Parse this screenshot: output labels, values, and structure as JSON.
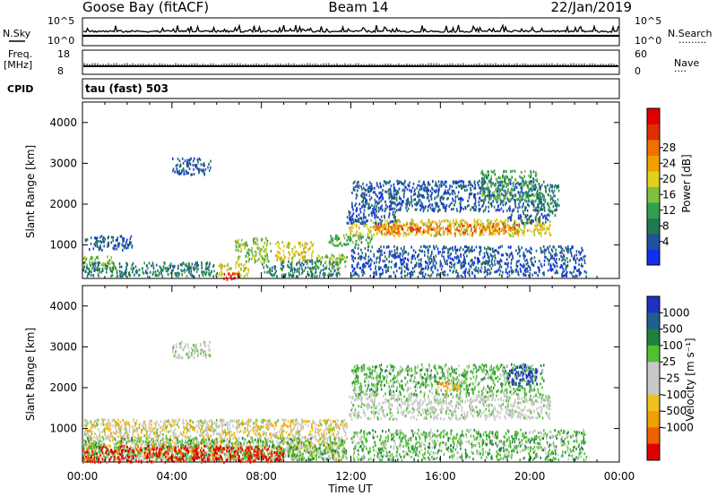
{
  "header": {
    "station": "Goose Bay (fitACF)",
    "beam": "Beam 14",
    "date": "22/Jan/2019"
  },
  "panels": {
    "nsky_label": "N.Sky",
    "nsearch_label": "N.Search",
    "nsearch_dots": "·········",
    "freq_label_line1": "Freq.",
    "freq_label_line2": "[MHz]",
    "nave_label": "Nave",
    "nave_dots": "····",
    "cpid_label": "CPID",
    "cpid_value": "tau (fast) 503",
    "noise_ticks_left": [
      "10^5",
      "10^0"
    ],
    "noise_ticks_right": [
      "10^5",
      "10^0"
    ],
    "freq_ticks_left": [
      "18",
      "8"
    ],
    "nave_ticks_right": [
      "60",
      "0"
    ]
  },
  "chart_data": [
    {
      "type": "heatmap",
      "name": "power",
      "ylabel": "Slant Range [km]",
      "y_ticks": [
        1000,
        2000,
        3000,
        4000
      ],
      "ylim": [
        180,
        4500
      ],
      "xlim": [
        0,
        24
      ],
      "colorbar": {
        "label": "Power [dB]",
        "ticks": [
          "4",
          "8",
          "12",
          "16",
          "20",
          "24",
          "28"
        ],
        "colors": [
          "#1030f0",
          "#2050a0",
          "#207850",
          "#30a050",
          "#80c040",
          "#e0d020",
          "#f0a000",
          "#f07000",
          "#e03000",
          "#e00000"
        ]
      },
      "regions": [
        {
          "t0": 0.1,
          "t1": 2.2,
          "r0": 900,
          "r1": 1250,
          "level": 1
        },
        {
          "t0": 0.0,
          "t1": 1.4,
          "r0": 400,
          "r1": 750,
          "level": 4
        },
        {
          "t0": 0.0,
          "t1": 6.0,
          "r0": 250,
          "r1": 600,
          "level": 2
        },
        {
          "t0": 4.0,
          "t1": 5.7,
          "r0": 2750,
          "r1": 3150,
          "level": 1
        },
        {
          "t0": 6.0,
          "t1": 7.4,
          "r0": 250,
          "r1": 560,
          "level": 5
        },
        {
          "t0": 6.2,
          "t1": 7.0,
          "r0": 180,
          "r1": 330,
          "level": 9
        },
        {
          "t0": 6.8,
          "t1": 8.4,
          "r0": 600,
          "r1": 1200,
          "level": 4
        },
        {
          "t0": 8.6,
          "t1": 10.3,
          "r0": 650,
          "r1": 1100,
          "level": 5
        },
        {
          "t0": 8.0,
          "t1": 11.5,
          "r0": 250,
          "r1": 650,
          "level": 2
        },
        {
          "t0": 10.4,
          "t1": 11.8,
          "r0": 450,
          "r1": 800,
          "level": 4
        },
        {
          "t0": 11.0,
          "t1": 13.0,
          "r0": 1000,
          "r1": 1300,
          "level": 3
        },
        {
          "t0": 11.9,
          "t1": 20.9,
          "r0": 1250,
          "r1": 1650,
          "level": 5
        },
        {
          "t0": 13.0,
          "t1": 19.5,
          "r0": 1300,
          "r1": 1550,
          "level": 7
        },
        {
          "t0": 11.8,
          "t1": 14.0,
          "r0": 1550,
          "r1": 1850,
          "level": 1
        },
        {
          "t0": 19.0,
          "t1": 20.8,
          "r0": 1550,
          "r1": 1800,
          "level": 1
        },
        {
          "t0": 12.0,
          "t1": 20.6,
          "r0": 1850,
          "r1": 2600,
          "level": 1
        },
        {
          "t0": 17.8,
          "t1": 20.3,
          "r0": 2100,
          "r1": 2850,
          "level": 3
        },
        {
          "t0": 20.3,
          "t1": 21.3,
          "r0": 1750,
          "r1": 2500,
          "level": 2
        },
        {
          "t0": 12.0,
          "t1": 22.5,
          "r0": 250,
          "r1": 1000,
          "level": 1
        }
      ]
    },
    {
      "type": "heatmap",
      "name": "velocity",
      "ylabel": "Slant Range [km]",
      "xlabel": "Time UT",
      "x_ticks": [
        "00:00",
        "04:00",
        "08:00",
        "12:00",
        "16:00",
        "20:00",
        "00:00"
      ],
      "y_ticks": [
        1000,
        2000,
        3000,
        4000
      ],
      "ylim": [
        180,
        4500
      ],
      "xlim": [
        0,
        24
      ],
      "colorbar": {
        "label": "Velocity [m s⁻¹]",
        "ticks": [
          "1000",
          "500",
          "100",
          "25",
          "-25",
          "-100",
          "-500",
          "-1000"
        ],
        "colors": [
          "#2030c0",
          "#206090",
          "#208040",
          "#50c030",
          "#c8c8c8",
          "#c8c8c8",
          "#f0c020",
          "#f0a000",
          "#f06000",
          "#e00000"
        ]
      },
      "regions": [
        {
          "t0": 0.0,
          "t1": 11.8,
          "r0": 250,
          "r1": 1250,
          "level": 4
        },
        {
          "t0": 0.0,
          "t1": 11.8,
          "r0": 250,
          "r1": 1250,
          "level": 6
        },
        {
          "t0": 0.0,
          "t1": 11.8,
          "r0": 250,
          "r1": 800,
          "level": 3
        },
        {
          "t0": 0.0,
          "t1": 9.0,
          "r0": 200,
          "r1": 600,
          "level": 9
        },
        {
          "t0": 4.0,
          "t1": 5.7,
          "r0": 2750,
          "r1": 3150,
          "level": 4
        },
        {
          "t0": 11.9,
          "t1": 20.9,
          "r0": 1250,
          "r1": 1850,
          "level": 4
        },
        {
          "t0": 12.0,
          "t1": 20.6,
          "r0": 1850,
          "r1": 2600,
          "level": 3
        },
        {
          "t0": 19.0,
          "t1": 20.3,
          "r0": 2100,
          "r1": 2600,
          "level": 0
        },
        {
          "t0": 15.8,
          "t1": 16.8,
          "r0": 1950,
          "r1": 2150,
          "level": 7
        },
        {
          "t0": 12.0,
          "t1": 22.5,
          "r0": 250,
          "r1": 1000,
          "level": 3
        }
      ]
    }
  ]
}
